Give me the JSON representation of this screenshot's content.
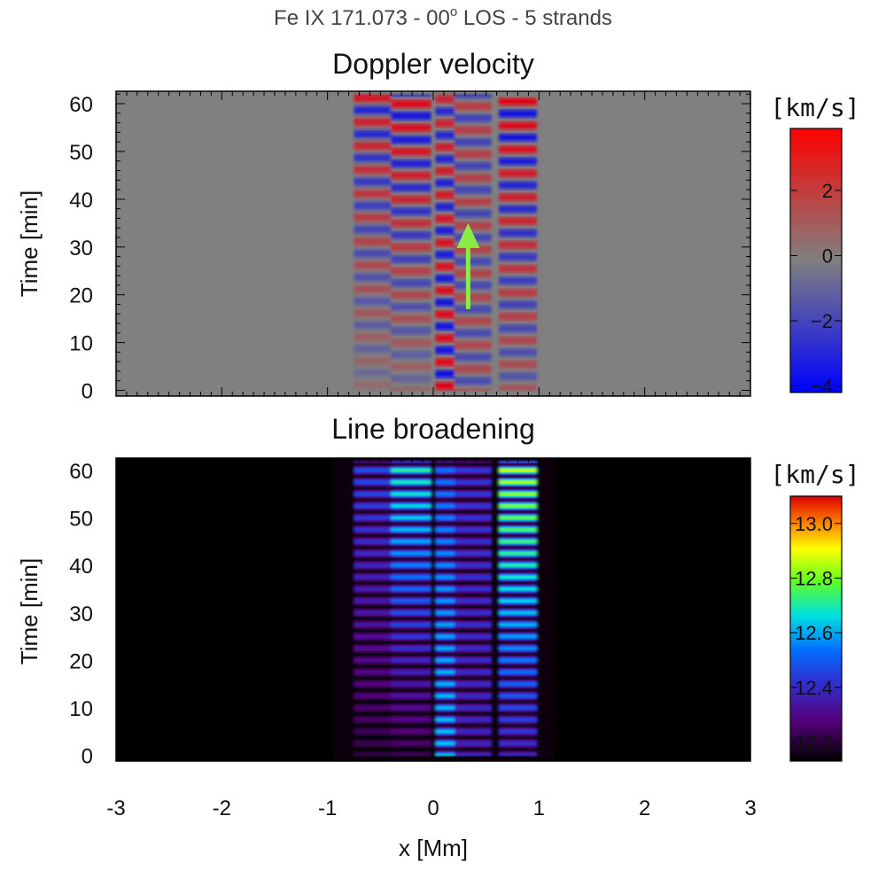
{
  "chart_data": [
    {
      "type": "heatmap",
      "title": "Doppler velocity",
      "suptitle": {
        "prefix": "Fe IX 171.073 - 00",
        "superscript": "o",
        "suffix": " LOS - 5 strands"
      },
      "xlabel": "x [Mm]",
      "ylabel": "Time [min]",
      "xlim": [
        -3,
        3
      ],
      "ylim": [
        0,
        62
      ],
      "yticks": [
        0,
        10,
        20,
        30,
        40,
        50,
        60
      ],
      "colorbar": {
        "label": "[km/s]",
        "range": [
          -4.2,
          3.9
        ],
        "ticks": [
          -4,
          -2,
          0,
          2
        ],
        "colormap": "blue-gray-red"
      },
      "strands": [
        {
          "x_min": -0.75,
          "x_max": -0.4,
          "amplitude_start": 0.15,
          "amplitude_end": 0.85,
          "period_min": 5.0,
          "phase": 0.3
        },
        {
          "x_min": -0.4,
          "x_max": -0.02,
          "amplitude_start": 0.2,
          "amplitude_end": 1.0,
          "period_min": 5.0,
          "phase": 1.8
        },
        {
          "x_min": 0.02,
          "x_max": 0.4,
          "amplitude_start": 1.0,
          "amplitude_end": 0.75,
          "period_min": 5.0,
          "phase": 0.6
        },
        {
          "x_min": 0.2,
          "x_max": 0.55,
          "amplitude_start": 0.45,
          "amplitude_end": 0.55,
          "period_min": 5.0,
          "phase": 2.4
        },
        {
          "x_min": 0.62,
          "x_max": 0.98,
          "amplitude_start": 0.35,
          "amplitude_end": 1.0,
          "period_min": 5.0,
          "phase": 1.2
        }
      ],
      "annotation": {
        "type": "arrow",
        "color": "#88ee44",
        "x": 0.33,
        "y_from": 17,
        "y_to": 35
      }
    },
    {
      "type": "heatmap",
      "title": "Line broadening",
      "xlabel": "x [Mm]",
      "ylabel": "Time [min]",
      "xlim": [
        -3,
        3
      ],
      "xticks": [
        -3,
        -2,
        -1,
        0,
        1,
        2,
        3
      ],
      "ylim": [
        0,
        62
      ],
      "yticks": [
        0,
        10,
        20,
        30,
        40,
        50,
        60
      ],
      "colorbar": {
        "label": "[km/s]",
        "range": [
          12.13,
          13.1
        ],
        "ticks": [
          12.2,
          12.4,
          12.6,
          12.8,
          13.0
        ],
        "colormap": "rainbow (black-purple-blue-cyan-green-yellow-red)"
      },
      "strands": [
        {
          "x_min": -0.75,
          "x_max": -0.4,
          "level_start": 12.22,
          "level_end": 12.5,
          "period_min": 2.5
        },
        {
          "x_min": -0.4,
          "x_max": -0.02,
          "level_start": 12.24,
          "level_end": 12.75,
          "period_min": 2.5
        },
        {
          "x_min": 0.02,
          "x_max": 0.4,
          "level_start": 12.65,
          "level_end": 12.55,
          "period_min": 2.5
        },
        {
          "x_min": 0.2,
          "x_max": 0.55,
          "level_start": 12.4,
          "level_end": 12.45,
          "period_min": 2.5
        },
        {
          "x_min": 0.62,
          "x_max": 0.98,
          "level_start": 12.4,
          "level_end": 12.9,
          "period_min": 2.5
        }
      ]
    }
  ]
}
